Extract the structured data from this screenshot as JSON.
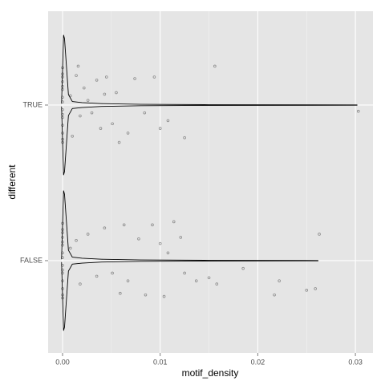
{
  "chart_data": {
    "type": "violin",
    "x_label": "motif_density",
    "y_label": "different",
    "categories": [
      "FALSE",
      "TRUE"
    ],
    "xlim": [
      -0.00148,
      0.0318
    ],
    "ylim": [
      0.407,
      2.603
    ],
    "xticks": [
      {
        "value": 0,
        "label": "0.00"
      },
      {
        "value": 0.01,
        "label": "0.01"
      },
      {
        "value": 0.02,
        "label": "0.02"
      },
      {
        "value": 0.03,
        "label": "0.03"
      }
    ],
    "minor_xticks": [
      0.005,
      0.015,
      0.025
    ],
    "grid": true,
    "line_color": "#000000",
    "point_color": "#8c8c8c",
    "violins": [
      {
        "x": [
          -0.0001,
          0.0001,
          0.0002,
          0.0004,
          0.0006,
          0.001,
          0.002,
          0.004,
          0.008,
          0.015,
          0.0262
        ],
        "width": [
          0.02,
          1.0,
          0.95,
          0.55,
          0.15,
          0.05,
          0.035,
          0.02,
          0.01,
          0.005,
          0.002
        ]
      },
      {
        "x": [
          -0.0001,
          0.0001,
          0.0002,
          0.0004,
          0.0006,
          0.001,
          0.002,
          0.004,
          0.008,
          0.015,
          0.0302
        ],
        "width": [
          0.02,
          1.0,
          0.95,
          0.55,
          0.15,
          0.05,
          0.035,
          0.02,
          0.01,
          0.005,
          0.002
        ]
      }
    ],
    "points": [
      {
        "x": [
          0,
          0,
          0,
          0,
          0,
          0,
          0,
          0,
          0,
          0,
          0,
          0,
          0,
          0,
          0,
          0.0263,
          0.0114,
          0.0185,
          0.0222,
          0.025,
          0.0259,
          0.0217,
          0.0158,
          0.0137,
          0.0104,
          0.0085,
          0.0078,
          0.01,
          0.0108,
          0.0063,
          0.0043,
          0.0026,
          0.0014,
          0.0051,
          0.0035,
          0.0018,
          0.0067,
          0.0125,
          0.0121,
          0.0008,
          0.0059,
          0.015,
          0.0092
        ],
        "y": [
          1.24,
          1.2,
          1.15,
          1.1,
          1.05,
          1.02,
          0.97,
          0.92,
          0.87,
          0.82,
          0.78,
          0.76,
          1.18,
          1.12,
          0.94,
          1.17,
          1.25,
          0.95,
          0.87,
          0.81,
          0.82,
          0.78,
          0.85,
          0.87,
          0.77,
          0.78,
          1.14,
          1.11,
          1.05,
          1.23,
          1.21,
          1.17,
          1.13,
          0.92,
          0.9,
          0.85,
          0.87,
          0.92,
          1.15,
          1.08,
          0.79,
          0.89,
          1.23
        ]
      },
      {
        "x": [
          0,
          0,
          0,
          0,
          0,
          0,
          0,
          0,
          0,
          0,
          0,
          0,
          0,
          0,
          0,
          0.0016,
          0.0156,
          0.0074,
          0.0094,
          0.0035,
          0.0045,
          0.0022,
          0.0055,
          0.0008,
          0.0026,
          0.0108,
          0.0125,
          0.0303,
          0.0067,
          0.0058,
          0.0039,
          0.0018,
          0.003,
          0.001,
          0.0051,
          0.01,
          0.0084,
          0.0014,
          0.0043
        ],
        "y": [
          2.24,
          2.2,
          2.15,
          2.1,
          2.05,
          2.02,
          1.97,
          1.92,
          1.87,
          1.82,
          1.78,
          1.76,
          2.18,
          2.12,
          1.94,
          2.25,
          2.25,
          2.17,
          2.18,
          2.16,
          2.18,
          2.11,
          2.08,
          2.06,
          2.03,
          1.9,
          1.79,
          1.96,
          1.82,
          1.76,
          1.85,
          1.93,
          1.95,
          1.8,
          1.88,
          1.85,
          1.95,
          2.19,
          2.07
        ]
      }
    ]
  }
}
